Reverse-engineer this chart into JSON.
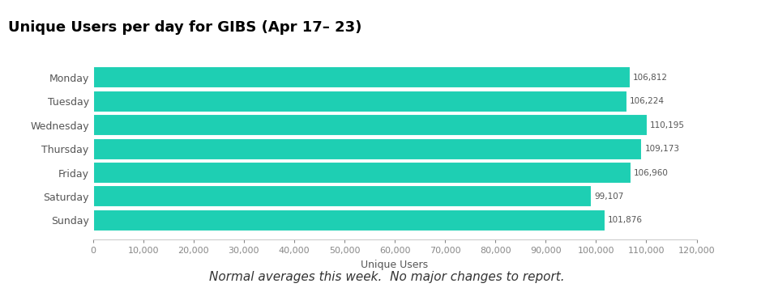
{
  "title": "Unique Users per day for GIBS (Apr 17– 23)",
  "days": [
    "Monday",
    "Tuesday",
    "Wednesday",
    "Thursday",
    "Friday",
    "Saturday",
    "Sunday"
  ],
  "values": [
    106812,
    106224,
    110195,
    109173,
    106960,
    99107,
    101876
  ],
  "bar_color": "#1ECFB3",
  "xlabel": "Unique Users",
  "xlim": [
    0,
    120000
  ],
  "xticks": [
    0,
    10000,
    20000,
    30000,
    40000,
    50000,
    60000,
    70000,
    80000,
    90000,
    100000,
    110000,
    120000
  ],
  "annotation_color": "#555555",
  "annotation_fontsize": 7.5,
  "label_fontsize": 9,
  "title_fontsize": 13,
  "xlabel_fontsize": 9,
  "subtitle": "Normal averages this week.  No major changes to report.",
  "subtitle_fontsize": 11,
  "background_color": "#ffffff"
}
